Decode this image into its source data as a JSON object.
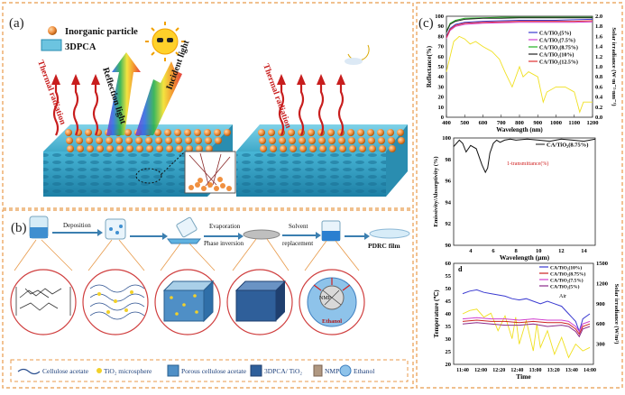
{
  "panel_a": {
    "label": "(a)",
    "legend_particle": "Inorganic particle",
    "legend_pca": "3DPCA",
    "thermal_left": "Thermal radiation",
    "reflection": "Reflection light",
    "incident": "Incident light",
    "thermal_right": "Thermal radiation"
  },
  "panel_b": {
    "label": "(b)",
    "steps": [
      "Deposition",
      "Evaporation",
      "Phase inversion",
      "Solvent",
      "replacement",
      "PDRC film"
    ],
    "inner_labels": [
      "NMP",
      "Ethanol"
    ],
    "legend": [
      {
        "label": "Cellulose acetate",
        "icon": "wave-icon"
      },
      {
        "label": "TiO₂ microsphere",
        "icon": "sphere-icon"
      },
      {
        "label": "Porous cellulose acetate",
        "icon": "cube-icon"
      },
      {
        "label": "3DPCA/ TiO₂",
        "icon": "cube-dots-icon"
      },
      {
        "label": "NMP",
        "icon": "brown-square-icon"
      },
      {
        "label": "Ethanol",
        "icon": "blue-circle-icon"
      }
    ]
  },
  "panel_c": {
    "label": "(c)",
    "chart_data": [
      {
        "type": "line",
        "xlabel": "Wavelength (nm)",
        "ylabel": "Reflectance(%)",
        "y2label": "Solar irradiance (W·m⁻²·nm⁻¹)",
        "xlim": [
          400,
          1200
        ],
        "ylim": [
          0,
          100
        ],
        "y2lim": [
          0,
          2.0
        ],
        "xticks": [
          400,
          500,
          600,
          700,
          800,
          900,
          1000,
          1100,
          1200
        ],
        "yticks": [
          0,
          10,
          20,
          30,
          40,
          50,
          60,
          70,
          80,
          90,
          100
        ],
        "y2ticks": [
          "0.0",
          "0.2",
          "0.4",
          "0.6",
          "0.8",
          "1.0",
          "1.2",
          "1.4",
          "1.6",
          "1.8",
          "2.0"
        ],
        "series": [
          {
            "name": "CA/TiO₂(5%)",
            "color": "#3a3ad0",
            "x": [
              400,
              420,
              450,
              500,
              600,
              700,
              800,
              900,
              1000,
              1100,
              1200
            ],
            "y": [
              80,
              88,
              92,
              94,
              95,
              95.5,
              96,
              96,
              96,
              96.5,
              97
            ]
          },
          {
            "name": "CA/TiO₂(7.5%)",
            "color": "#d040d0",
            "x": [
              400,
              420,
              450,
              500,
              600,
              700,
              800,
              900,
              1000,
              1100,
              1200
            ],
            "y": [
              78,
              86,
              90,
              92,
              93,
              93.5,
              94,
              94,
              94,
              94,
              94.5
            ]
          },
          {
            "name": "CA/TiO₂(8.75%)",
            "color": "#20b020",
            "x": [
              400,
              420,
              450,
              500,
              600,
              700,
              800,
              900,
              1000,
              1100,
              1200
            ],
            "y": [
              85,
              93,
              96,
              98,
              98.5,
              99,
              99,
              99,
              99,
              99,
              99
            ]
          },
          {
            "name": "CA/TiO₂(10%)",
            "color": "#222222",
            "x": [
              400,
              420,
              450,
              500,
              600,
              700,
              800,
              900,
              1000,
              1100,
              1200
            ],
            "y": [
              84,
              92,
              95,
              97,
              98,
              98,
              98.5,
              98.5,
              98.5,
              98.5,
              98.5
            ]
          },
          {
            "name": "CA/TiO₂(12.5%)",
            "color": "#e03030",
            "x": [
              400,
              420,
              450,
              500,
              600,
              700,
              800,
              900,
              1000,
              1100,
              1200
            ],
            "y": [
              79,
              87,
              91,
              93,
              94,
              94.5,
              95,
              95,
              95,
              95,
              95.5
            ]
          }
        ],
        "irradiance": {
          "color": "#f0e020",
          "x": [
            400,
            440,
            470,
            500,
            530,
            560,
            600,
            650,
            690,
            720,
            760,
            800,
            820,
            850,
            900,
            930,
            950,
            1000,
            1050,
            1100,
            1130,
            1150,
            1200
          ],
          "y": [
            0.9,
            1.5,
            1.6,
            1.55,
            1.45,
            1.5,
            1.4,
            1.3,
            1.15,
            0.9,
            0.6,
            1.0,
            0.8,
            0.9,
            0.8,
            0.3,
            0.5,
            0.6,
            0.6,
            0.5,
            0.1,
            0.3,
            0.3
          ]
        }
      },
      {
        "type": "line",
        "xlabel": "Wavelength (μm)",
        "ylabel": "Emissivity/Absorptivity (%)",
        "xlim": [
          2.5,
          15
        ],
        "ylim": [
          90,
          100
        ],
        "xticks": [
          4,
          6,
          8,
          10,
          12,
          14
        ],
        "yticks": [
          90,
          92,
          94,
          96,
          98,
          100
        ],
        "annotation": "1-transmittance(%)",
        "series": [
          {
            "name": "CA/TiO₂(8.75%)",
            "color": "#111111",
            "x": [
              2.5,
              3,
              3.3,
              3.6,
              4,
              4.5,
              5,
              5.3,
              5.5,
              5.7,
              6,
              6.3,
              6.6,
              7,
              7.5,
              8,
              9,
              10,
              11,
              12,
              13,
              14,
              15
            ],
            "y": [
              99.2,
              99.8,
              99.5,
              98.7,
              99.3,
              99,
              97.5,
              96.8,
              97.2,
              98.6,
              99.5,
              99.8,
              99.6,
              99.8,
              99.9,
              99.8,
              99.9,
              99.8,
              99.7,
              99.9,
              99.8,
              99.7,
              99.9
            ]
          }
        ]
      },
      {
        "type": "line",
        "label": "d",
        "xlabel": "Time",
        "ylabel": "Temperature (℃)",
        "y2label": "Solar irradiance (W/m²)",
        "xticks": [
          "11:40",
          "12:00",
          "12:20",
          "12:40",
          "13:00",
          "13:20",
          "13:40",
          "14:00"
        ],
        "ylim": [
          20,
          60
        ],
        "yticks": [
          20,
          25,
          30,
          35,
          40,
          45,
          50,
          55,
          60
        ],
        "y2lim": [
          0,
          1500
        ],
        "y2ticks": [
          300,
          600,
          900,
          1200,
          1500
        ],
        "air_label": "Air",
        "series": [
          {
            "name": "CA/TiO₂(10%)",
            "color": "#3a3ad0",
            "x": [
              0,
              10,
              20,
              30,
              40,
              50,
              60,
              70,
              80,
              90,
              100,
              110,
              120,
              130,
              140,
              150,
              160,
              165,
              170,
              180
            ],
            "y": [
              48,
              49,
              49.5,
              48.5,
              48,
              47.5,
              47,
              46,
              45.5,
              46,
              45,
              44,
              45,
              44,
              43,
              40,
              37,
              33,
              38,
              40
            ]
          },
          {
            "name": "CA/TiO₂(8.75%)",
            "color": "#cc2222",
            "x": [
              0,
              20,
              40,
              60,
              80,
              100,
              120,
              140,
              150,
              160,
              165,
              170,
              180
            ],
            "y": [
              37,
              37.5,
              37,
              37,
              36.5,
              37,
              36.5,
              36.5,
              36,
              34,
              32,
              35,
              36
            ]
          },
          {
            "name": "CA/TiO₂(7.5%)",
            "color": "#d040d0",
            "x": [
              0,
              20,
              40,
              60,
              80,
              100,
              120,
              140,
              150,
              160,
              165,
              170,
              180
            ],
            "y": [
              38,
              38.5,
              38,
              38,
              37.5,
              38,
              37.5,
              37.5,
              37,
              35,
              33,
              36,
              37
            ]
          },
          {
            "name": "CA/TiO₂(5%)",
            "color": "#8a2a8a",
            "x": [
              0,
              20,
              40,
              60,
              80,
              100,
              120,
              140,
              150,
              160,
              165,
              170,
              180
            ],
            "y": [
              36,
              36.5,
              36,
              35.5,
              35.5,
              36,
              35,
              35.5,
              35,
              33,
              31,
              34,
              35
            ]
          }
        ],
        "irradiance": {
          "color": "#f0e020",
          "x": [
            0,
            10,
            20,
            30,
            40,
            50,
            60,
            70,
            75,
            80,
            90,
            100,
            105,
            110,
            120,
            130,
            140,
            150,
            160,
            170,
            180
          ],
          "y": [
            750,
            800,
            820,
            700,
            760,
            500,
            720,
            380,
            700,
            300,
            650,
            200,
            600,
            250,
            500,
            150,
            400,
            100,
            300,
            200,
            250
          ]
        }
      }
    ]
  }
}
